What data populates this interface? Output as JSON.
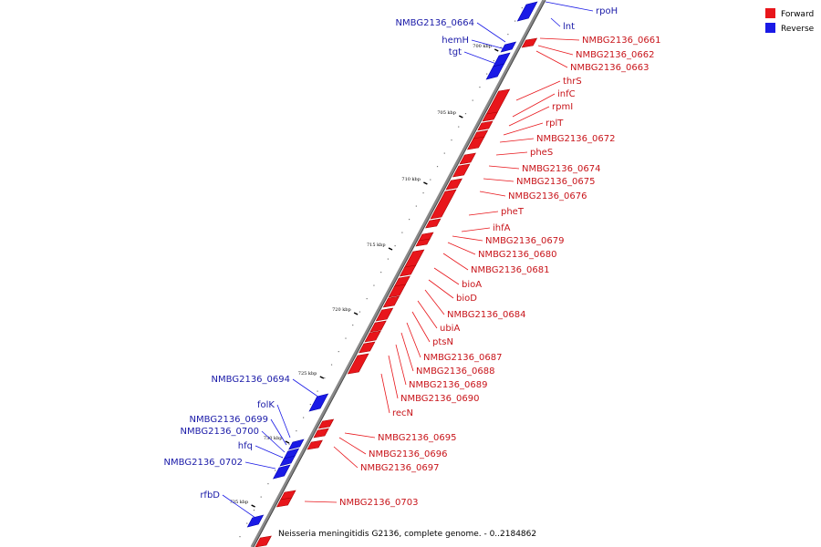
{
  "caption": "Neisseria meningitidis G2136, complete genome. - 0..2184862",
  "colors": {
    "forward": "#e8161b",
    "reverse": "#1a1ae6",
    "forward_label": "#c8141a",
    "reverse_label": "#1a1aa8",
    "backbone": "#888888"
  },
  "legend": [
    {
      "label": "Forward",
      "color": "#e8161b"
    },
    {
      "label": "Reverse",
      "color": "#1a1ae6"
    }
  ],
  "ticks": [
    "700 kbp",
    "705 kbp",
    "710 kbp",
    "715 kbp",
    "720 kbp",
    "725 kbp",
    "730 kbp",
    "735 kbp"
  ],
  "genes_right": [
    "rpoH",
    "lnt",
    "NMBG2136_0661",
    "NMBG2136_0662",
    "NMBG2136_0663",
    "thrS",
    "infC",
    "rpmI",
    "rplT",
    "NMBG2136_0672",
    "pheS",
    "NMBG2136_0674",
    "NMBG2136_0675",
    "NMBG2136_0676",
    "pheT",
    "ihfA",
    "NMBG2136_0679",
    "NMBG2136_0680",
    "NMBG2136_0681",
    "bioA",
    "bioD",
    "NMBG2136_0684",
    "ubiA",
    "ptsN",
    "NMBG2136_0687",
    "NMBG2136_0688",
    "NMBG2136_0689",
    "NMBG2136_0690",
    "recN",
    "NMBG2136_0695",
    "NMBG2136_0696",
    "NMBG2136_0697",
    "NMBG2136_0703"
  ],
  "genes_left": [
    "NMBG2136_0664",
    "hemH",
    "tgt",
    "NMBG2136_0694",
    "folK",
    "NMBG2136_0699",
    "NMBG2136_0700",
    "hfq",
    "NMBG2136_0702",
    "rfbD"
  ]
}
